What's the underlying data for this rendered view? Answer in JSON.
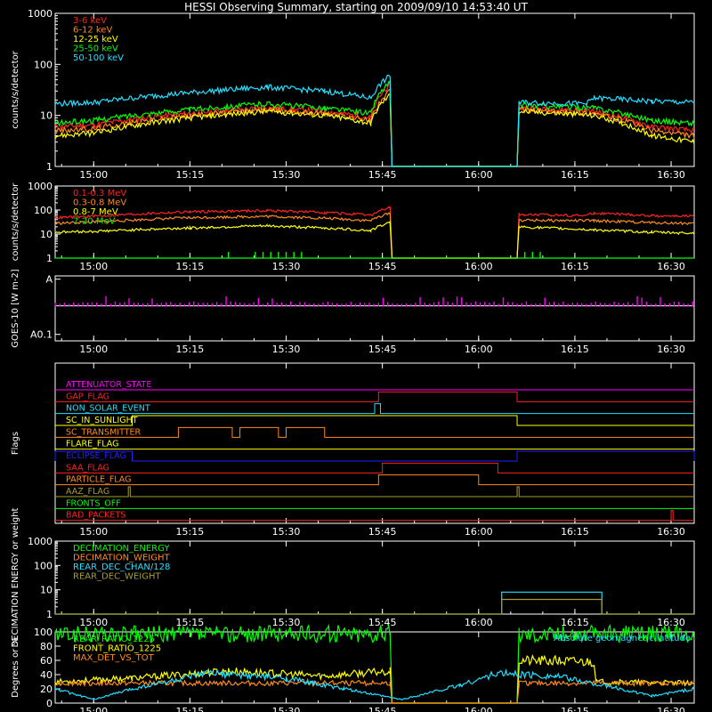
{
  "title": "HESSI Observing Summary, starting on 2009/09/10 14:53:40 UT",
  "colors": {
    "bg": "#000000",
    "axis": "#ffffff",
    "red": "#ff2020",
    "orange": "#ff8a1e",
    "yellow": "#ffff00",
    "green": "#00ff00",
    "cyan": "#20e0ff",
    "magenta": "#ff00ff",
    "blue": "#2020ff",
    "olive": "#a89b30"
  },
  "chart_data": [
    {
      "id": "lowenergy",
      "type": "line",
      "ylabel": "counts/s/detector",
      "yscale": "log",
      "ylim": [
        1,
        1000
      ],
      "yticks": [
        "1",
        "10",
        "100",
        "1000"
      ],
      "xlim": [
        14.9,
        16.56
      ],
      "xticks": [
        "15:00",
        "15:15",
        "15:30",
        "15:45",
        "16:00",
        "16:15",
        "16:30"
      ],
      "series": [
        {
          "name": "3-6 keV",
          "color": "red",
          "points": [
            [
              14.9,
              6
            ],
            [
              15.0,
              6.5
            ],
            [
              15.25,
              11
            ],
            [
              15.45,
              14
            ],
            [
              15.6,
              12
            ],
            [
              15.72,
              9
            ],
            [
              15.77,
              40
            ],
            [
              15.775,
              1
            ],
            [
              16.1,
              1
            ],
            [
              16.105,
              14
            ],
            [
              16.3,
              12
            ],
            [
              16.45,
              6
            ],
            [
              16.56,
              5
            ]
          ]
        },
        {
          "name": "6-12 keV",
          "color": "orange",
          "points": [
            [
              14.9,
              5
            ],
            [
              15.0,
              5.5
            ],
            [
              15.25,
              10
            ],
            [
              15.45,
              13
            ],
            [
              15.6,
              11
            ],
            [
              15.72,
              8
            ],
            [
              15.77,
              30
            ],
            [
              15.775,
              1
            ],
            [
              16.1,
              1
            ],
            [
              16.105,
              13
            ],
            [
              16.3,
              11
            ],
            [
              16.45,
              5
            ],
            [
              16.56,
              4
            ]
          ]
        },
        {
          "name": "12-25 keV",
          "color": "yellow",
          "points": [
            [
              14.9,
              4
            ],
            [
              15.0,
              4.5
            ],
            [
              15.25,
              9
            ],
            [
              15.45,
              12
            ],
            [
              15.6,
              10
            ],
            [
              15.72,
              7
            ],
            [
              15.77,
              25
            ],
            [
              15.775,
              1
            ],
            [
              16.1,
              1
            ],
            [
              16.105,
              12
            ],
            [
              16.3,
              10
            ],
            [
              16.45,
              4
            ],
            [
              16.56,
              3
            ]
          ]
        },
        {
          "name": "25-50 keV",
          "color": "green",
          "points": [
            [
              14.9,
              7
            ],
            [
              15.0,
              8
            ],
            [
              15.25,
              13
            ],
            [
              15.45,
              17
            ],
            [
              15.6,
              14
            ],
            [
              15.72,
              11
            ],
            [
              15.77,
              45
            ],
            [
              15.775,
              1
            ],
            [
              16.1,
              1
            ],
            [
              16.105,
              16
            ],
            [
              16.3,
              14
            ],
            [
              16.45,
              8
            ],
            [
              16.56,
              7
            ]
          ]
        },
        {
          "name": "50-100 keV",
          "color": "cyan",
          "points": [
            [
              14.9,
              17
            ],
            [
              15.0,
              18
            ],
            [
              15.25,
              28
            ],
            [
              15.45,
              36
            ],
            [
              15.6,
              30
            ],
            [
              15.72,
              22
            ],
            [
              15.77,
              60
            ],
            [
              15.775,
              1
            ],
            [
              16.1,
              1
            ],
            [
              16.105,
              18
            ],
            [
              16.28,
              17
            ],
            [
              16.3,
              22
            ],
            [
              16.45,
              19
            ],
            [
              16.56,
              18
            ]
          ]
        }
      ]
    },
    {
      "id": "highenergy",
      "type": "line",
      "ylabel": "counts/s/detector",
      "yscale": "log",
      "ylim": [
        1,
        1000
      ],
      "yticks": [
        "1",
        "10",
        "100",
        "1000"
      ],
      "xlim": [
        14.9,
        16.56
      ],
      "xticks": [
        "15:00",
        "15:15",
        "15:30",
        "15:45",
        "16:00",
        "16:15",
        "16:30"
      ],
      "series": [
        {
          "name": "0.1-0.3 MeV",
          "color": "red",
          "points": [
            [
              14.9,
              48
            ],
            [
              15.0,
              55
            ],
            [
              15.25,
              85
            ],
            [
              15.45,
              95
            ],
            [
              15.6,
              80
            ],
            [
              15.72,
              60
            ],
            [
              15.77,
              130
            ],
            [
              15.775,
              1
            ],
            [
              16.1,
              1
            ],
            [
              16.105,
              65
            ],
            [
              16.28,
              60
            ],
            [
              16.3,
              75
            ],
            [
              16.45,
              58
            ],
            [
              16.56,
              55
            ]
          ]
        },
        {
          "name": "0.3-0.8 MeV",
          "color": "orange",
          "points": [
            [
              14.9,
              28
            ],
            [
              15.0,
              32
            ],
            [
              15.25,
              48
            ],
            [
              15.45,
              55
            ],
            [
              15.6,
              46
            ],
            [
              15.72,
              36
            ],
            [
              15.77,
              75
            ],
            [
              15.775,
              1
            ],
            [
              16.1,
              1
            ],
            [
              16.105,
              38
            ],
            [
              16.3,
              36
            ],
            [
              16.45,
              30
            ],
            [
              16.56,
              28
            ]
          ]
        },
        {
          "name": "0.8-7 MeV",
          "color": "yellow",
          "points": [
            [
              14.9,
              12
            ],
            [
              15.0,
              13
            ],
            [
              15.25,
              18
            ],
            [
              15.45,
              22
            ],
            [
              15.6,
              18
            ],
            [
              15.72,
              14
            ],
            [
              15.77,
              30
            ],
            [
              15.775,
              1
            ],
            [
              16.1,
              1
            ],
            [
              16.105,
              20
            ],
            [
              16.3,
              15
            ],
            [
              16.45,
              12
            ],
            [
              16.56,
              11
            ]
          ]
        },
        {
          "name": "7-20 MeV",
          "color": "green",
          "points": [
            [
              14.9,
              1
            ],
            [
              16.56,
              1
            ]
          ]
        }
      ]
    },
    {
      "id": "goes",
      "type": "line",
      "ylabel": "GOES-10 [W m-2]",
      "yticks": [
        "A0.1",
        "A"
      ],
      "xlim": [
        14.9,
        16.56
      ],
      "xticks": [
        "15:00",
        "15:15",
        "15:30",
        "15:45",
        "16:00",
        "16:15",
        "16:30"
      ],
      "series": [
        {
          "name": "",
          "color": "magenta",
          "level": 0.55
        }
      ]
    },
    {
      "id": "flags",
      "type": "line",
      "ylabel": "Flags",
      "xlim": [
        14.9,
        16.56
      ],
      "xticks": [
        "15:00",
        "15:15",
        "15:30",
        "15:45",
        "16:00",
        "16:15",
        "16:30"
      ],
      "series": [
        {
          "name": "ATTENUATOR_STATE",
          "color": "magenta",
          "steps": []
        },
        {
          "name": "GAP_FLAG",
          "color": "red",
          "steps": [
            [
              15.74,
              16.1
            ]
          ]
        },
        {
          "name": "NON_SOLAR_EVENT",
          "color": "cyan",
          "steps": [
            [
              15.73,
              15.745
            ]
          ]
        },
        {
          "name": "SC_IN_SUNLIGHT",
          "color": "yellow",
          "steps": [
            [
              15.1,
              16.1
            ]
          ]
        },
        {
          "name": "SC_TRANSMITTER",
          "color": "orange",
          "steps": [
            [
              15.22,
              15.36
            ],
            [
              15.38,
              15.48
            ],
            [
              15.5,
              15.6
            ]
          ]
        },
        {
          "name": "FLARE_FLAG",
          "color": "yellow",
          "steps": []
        },
        {
          "name": "ECLIPSE_FLAG",
          "color": "blue",
          "steps": [
            [
              14.9,
              15.1
            ],
            [
              16.1,
              16.56
            ]
          ]
        },
        {
          "name": "SAA_FLAG",
          "color": "red",
          "steps": [
            [
              15.75,
              16.05
            ]
          ]
        },
        {
          "name": "PARTICLE_FLAG",
          "color": "orange",
          "steps": [
            [
              15.74,
              16.0
            ]
          ]
        },
        {
          "name": "AAZ_FLAG",
          "color": "olive",
          "steps": [
            [
              15.09,
              15.095
            ],
            [
              16.1,
              16.105
            ]
          ]
        },
        {
          "name": "FRONTS_OFF",
          "color": "green",
          "steps": []
        },
        {
          "name": "BAD_PACKETS",
          "color": "red",
          "steps": [
            [
              16.5,
              16.505
            ]
          ]
        }
      ]
    },
    {
      "id": "decimation",
      "type": "line",
      "ylabel": "DECIMATION ENERGY or weight",
      "yscale": "log",
      "ylim": [
        1,
        1000
      ],
      "yticks": [
        "1",
        "10",
        "100",
        "1000"
      ],
      "xlim": [
        14.9,
        16.56
      ],
      "xticks": [
        "15:00",
        "15:15",
        "15:30",
        "15:45",
        "16:00",
        "16:15",
        "16:30"
      ],
      "series": [
        {
          "name": "DECIMATION_ENERGY",
          "color": "green",
          "points": []
        },
        {
          "name": "DECIMATION_WEIGHT",
          "color": "orange",
          "points": []
        },
        {
          "name": "REAR_DEC_CHAN/128",
          "color": "cyan",
          "points": [
            [
              14.9,
              1
            ],
            [
              16.06,
              1
            ],
            [
              16.06,
              8
            ],
            [
              16.32,
              8
            ],
            [
              16.32,
              1
            ],
            [
              16.56,
              1
            ]
          ]
        },
        {
          "name": "REAR_DEC_WEIGHT",
          "color": "olive",
          "points": [
            [
              14.9,
              1
            ],
            [
              16.06,
              1
            ],
            [
              16.06,
              4
            ],
            [
              16.32,
              4
            ],
            [
              16.32,
              1
            ],
            [
              16.56,
              1
            ]
          ]
        }
      ]
    },
    {
      "id": "ratios",
      "type": "line",
      "ylabel": "Degrees or %",
      "ylim": [
        0,
        100
      ],
      "yticks": [
        "0",
        "20",
        "40",
        "60",
        "80",
        "100"
      ],
      "xlim": [
        14.9,
        16.56
      ],
      "xticks": [
        "15:00",
        "15:15",
        "15:30",
        "15:45",
        "16:00",
        "16:15",
        "16:30"
      ],
      "annotation": "Absolute geomagnetic latitude",
      "series": [
        {
          "name": "REAR_RATIO_1225",
          "color": "green",
          "points": [
            [
              14.9,
              96
            ],
            [
              15.77,
              98
            ],
            [
              15.775,
              0
            ],
            [
              16.1,
              0
            ],
            [
              16.105,
              98
            ],
            [
              16.56,
              97
            ]
          ]
        },
        {
          "name": "FRONT_RATIO_1225",
          "color": "yellow",
          "points": [
            [
              14.9,
              30
            ],
            [
              15.1,
              35
            ],
            [
              15.35,
              45
            ],
            [
              15.6,
              38
            ],
            [
              15.77,
              45
            ],
            [
              15.775,
              0
            ],
            [
              16.1,
              0
            ],
            [
              16.105,
              60
            ],
            [
              16.3,
              58
            ],
            [
              16.305,
              30
            ],
            [
              16.56,
              28
            ]
          ]
        },
        {
          "name": "MAX_DET_VS_TOT",
          "color": "orange",
          "points": [
            [
              14.9,
              28
            ],
            [
              15.77,
              28
            ],
            [
              15.775,
              0
            ],
            [
              16.1,
              0
            ],
            [
              16.105,
              28
            ],
            [
              16.56,
              28
            ]
          ]
        },
        {
          "name": "",
          "color": "cyan",
          "points": [
            [
              14.9,
              20
            ],
            [
              15.0,
              5
            ],
            [
              15.1,
              20
            ],
            [
              15.3,
              42
            ],
            [
              15.5,
              35
            ],
            [
              15.65,
              20
            ],
            [
              15.8,
              5
            ],
            [
              15.95,
              25
            ],
            [
              16.05,
              42
            ],
            [
              16.2,
              38
            ],
            [
              16.35,
              22
            ],
            [
              16.45,
              10
            ],
            [
              16.56,
              20
            ]
          ]
        }
      ]
    }
  ]
}
